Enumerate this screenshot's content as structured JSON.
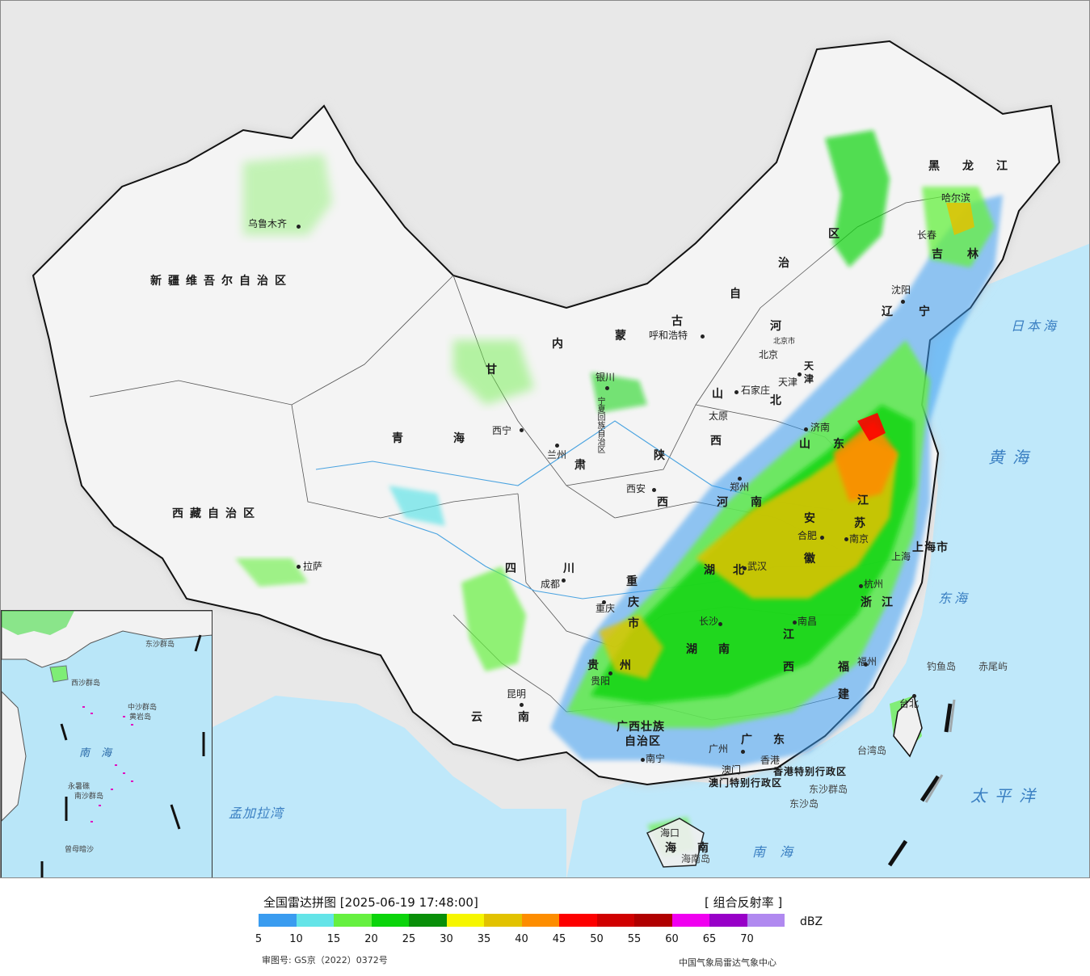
{
  "title": "全国雷达拼图",
  "timestamp": "[2025-06-19 17:48:00]",
  "product": "[ 组合反射率 ]",
  "unit": "dBZ",
  "approval": "审图号: GS京（2022）0372号",
  "agency": "中国气象局雷达气象中心",
  "legend": {
    "colors": [
      "#3a9cf0",
      "#64e4e8",
      "#66f040",
      "#0bd40b",
      "#098f09",
      "#f6f600",
      "#e2c200",
      "#fd8d00",
      "#fd0000",
      "#d00000",
      "#b00000",
      "#f000f0",
      "#9800c8",
      "#b089f0"
    ],
    "ticks": [
      "5",
      "10",
      "15",
      "20",
      "25",
      "30",
      "35",
      "40",
      "45",
      "50",
      "55",
      "60",
      "65",
      "70"
    ]
  },
  "regions": {
    "xinjiang": "新疆维吾尔自治区",
    "tibet": "西藏自治区",
    "qinghai_1": "青",
    "qinghai_2": "海",
    "gansu": "甘",
    "sichuan_1": "四",
    "sichuan_2": "川",
    "yunnan_1": "云",
    "yunnan_2": "南",
    "nmg_1": "内",
    "nmg_2": "蒙",
    "nmg_3": "古",
    "nmg_4": "自",
    "nmg_5": "治",
    "nmg_6": "区",
    "heilongjiang_1": "黑",
    "heilongjiang_2": "龙",
    "heilongjiang_3": "江",
    "jilin_1": "吉",
    "jilin_2": "林",
    "liaoning_1": "辽",
    "liaoning_2": "宁",
    "hebei_1": "河",
    "hebei_2": "北",
    "shanxi_1": "山",
    "shanxi_2": "西",
    "shaanxi_1": "陕",
    "shaanxi_2": "西",
    "henan_1": "河",
    "henan_2": "南",
    "shandong_1": "山",
    "shandong_2": "东",
    "jiangsu_1": "江",
    "jiangsu_2": "苏",
    "anhui_1": "安",
    "anhui_2": "徽",
    "hubei_1": "湖",
    "hubei_2": "北",
    "hunan_1": "湖",
    "hunan_2": "南",
    "jiangxi_1": "江",
    "jiangxi_2": "西",
    "zhejiang_1": "浙",
    "zhejiang_2": "江",
    "fujian_1": "福",
    "fujian_2": "建",
    "guangdong_1": "广",
    "guangdong_2": "东",
    "guangxi_1": "广西壮族",
    "guangxi_2": "自治区",
    "guizhou_1": "贵",
    "guizhou_2": "州",
    "chongqing_1": "重",
    "chongqing_2": "庆",
    "chongqing_3": "市",
    "hainan_1": "海",
    "hainan_2": "南",
    "ningxia": "宁夏回族自治区",
    "tianjin_1": "天",
    "tianjin_2": "津",
    "shanghai": "上海市",
    "hk": "香港特别行政区",
    "macau": "澳门特别行政区",
    "gansu_2": "肃"
  },
  "cities": {
    "urumqi": "乌鲁木齐",
    "lhasa": "拉萨",
    "xining": "西宁",
    "lanzhou": "兰州",
    "yinchuan": "银川",
    "hohhot": "呼和浩特",
    "beijing": "北京",
    "beijing_small": "北京市",
    "tianjin": "天津",
    "shijiazhuang": "石家庄",
    "taiyuan": "太原",
    "jinan": "济南",
    "xian": "西安",
    "zhengzhou": "郑州",
    "hefei": "合肥",
    "nanjing": "南京",
    "shanghai": "上海",
    "hangzhou": "杭州",
    "wuhan": "武汉",
    "changsha": "长沙",
    "nanchang": "南昌",
    "fuzhou": "福州",
    "chengdu": "成都",
    "chongqing": "重庆",
    "guiyang": "贵阳",
    "kunming": "昆明",
    "nanning": "南宁",
    "guangzhou": "广州",
    "hongkong": "香港",
    "macau": "澳门",
    "haikou": "海口",
    "taibei": "台北",
    "shenyang": "沈阳",
    "changchun": "长春",
    "harbin": "哈尔滨"
  },
  "seas": {
    "japan_sea": "日本海",
    "yellow_sea": "黄海",
    "east_sea": "东海",
    "pacific": "太平洋",
    "south_sea": "南海",
    "bengal": "孟加拉湾",
    "south_sea_inset": "南海"
  },
  "islands": {
    "diaoyu": "钓鱼岛",
    "chiwei": "赤尾屿",
    "taiwan": "台湾岛",
    "dongsha_q": "东沙群岛",
    "dongsha": "东沙岛",
    "hainan_isl": "海南岛",
    "inset_xisha": "西沙群岛",
    "inset_zhongsha": "中沙群岛",
    "inset_huangyan": "黄岩岛",
    "inset_nansha": "南沙群岛",
    "inset_dongsha": "东沙群岛",
    "inset_zengmu": "曾母暗沙",
    "inset_yongshu": "永暑礁"
  }
}
